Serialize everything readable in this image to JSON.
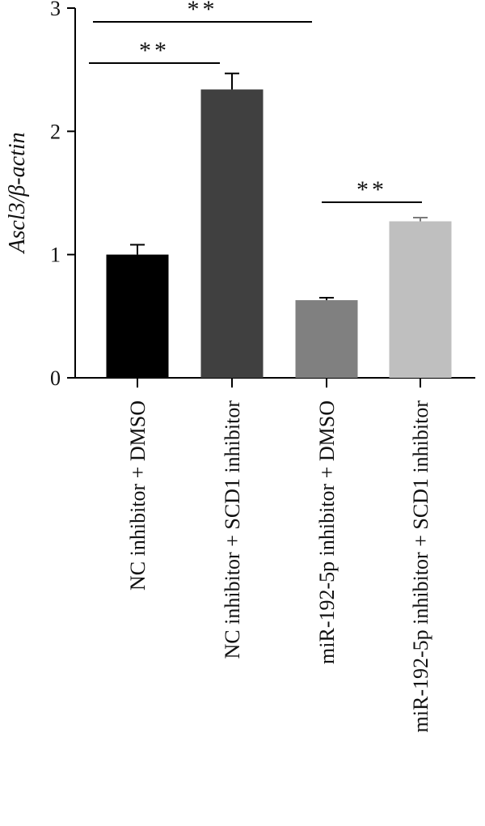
{
  "chart_data": {
    "type": "bar",
    "ylabel": "Ascl3/β-actin",
    "ylim": [
      0,
      3
    ],
    "yticks": [
      "0",
      "1",
      "2",
      "3"
    ],
    "categories": [
      "NC inhibitor + DMSO",
      "NC inhibitor + SCD1 inhibitor",
      "miR-192-5p inhibitor + DMSO",
      "miR-192-5p inhibitor + SCD1 inhibitor"
    ],
    "values": [
      1.0,
      2.34,
      0.63,
      1.27
    ],
    "errors": [
      0.08,
      0.13,
      0.02,
      0.03
    ],
    "colors": [
      "#000000",
      "#404040",
      "#808080",
      "#bfbfbf"
    ],
    "significance": [
      {
        "from": 0,
        "to": 2,
        "label": "**"
      },
      {
        "from": 0,
        "to": 1,
        "label": "**"
      },
      {
        "from": 2,
        "to": 3,
        "label": "**"
      }
    ]
  }
}
